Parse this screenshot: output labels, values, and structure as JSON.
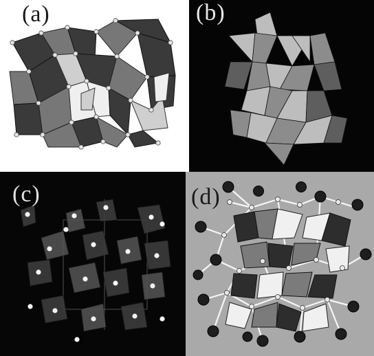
{
  "figure": {
    "panels": [
      {
        "id": "a",
        "label": "(a)"
      },
      {
        "id": "b",
        "label": "(b)"
      },
      {
        "id": "c",
        "label": "(c)"
      },
      {
        "id": "d",
        "label": "(d)"
      }
    ]
  },
  "colors": {
    "panel_a_background": "#ffffff",
    "panel_b_background": "#050505",
    "panel_c_background": "#060606",
    "panel_d_background": "#a9a9a9"
  }
}
